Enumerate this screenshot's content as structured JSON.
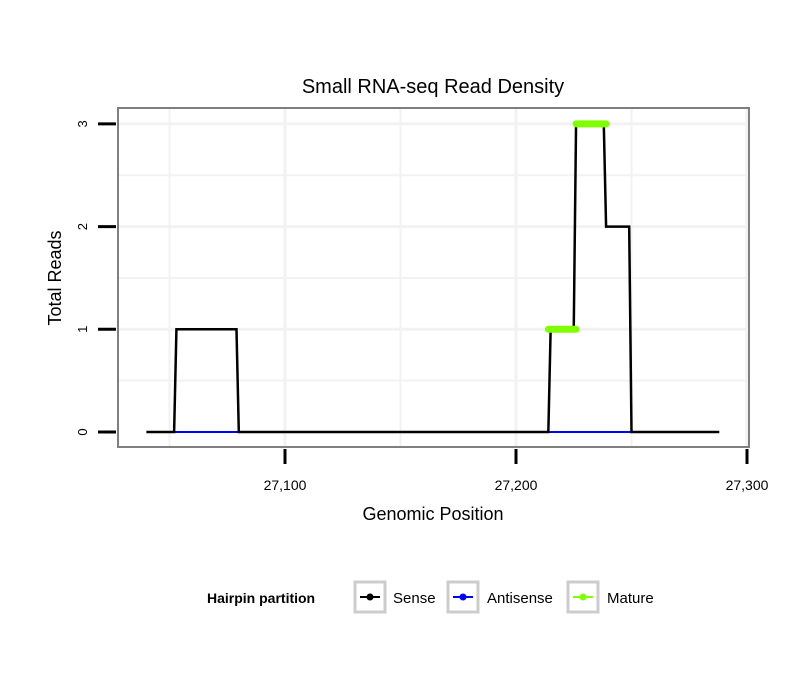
{
  "chart_data": {
    "type": "line",
    "title": "Small RNA-seq Read Density",
    "xlabel": "Genomic Position",
    "ylabel": "Total Reads",
    "xlim": [
      27030,
      27302
    ],
    "ylim": [
      -0.15,
      3.15
    ],
    "x_ticks": [
      27100,
      27200,
      27300
    ],
    "x_tick_labels": [
      "27,100",
      "27,200",
      "27,300"
    ],
    "y_ticks": [
      0,
      1,
      2,
      3
    ],
    "y_tick_labels": [
      "0",
      "1",
      "2",
      "3"
    ],
    "grid": true,
    "legend": {
      "title": "Hairpin partition",
      "placement": "bottom"
    },
    "series": [
      {
        "name": "Sense",
        "color": "#000000",
        "segments": [
          [
            [
              27040,
              0
            ],
            [
              27052,
              0
            ],
            [
              27053,
              1
            ],
            [
              27079,
              1
            ],
            [
              27080,
              0
            ],
            [
              27214,
              0
            ],
            [
              27215,
              1
            ],
            [
              27225,
              1
            ],
            [
              27226,
              3
            ],
            [
              27238,
              3
            ],
            [
              27239,
              2
            ],
            [
              27249,
              2
            ],
            [
              27250,
              0
            ],
            [
              27288,
              0
            ]
          ]
        ]
      },
      {
        "name": "Antisense",
        "color": "#0000ff",
        "segments": [
          [
            [
              27052,
              0
            ],
            [
              27080,
              0
            ]
          ],
          [
            [
              27214,
              0
            ],
            [
              27250,
              0
            ]
          ]
        ]
      },
      {
        "name": "Mature",
        "color": "#7fff00",
        "segments": [
          [
            [
              27214,
              1
            ],
            [
              27226,
              1
            ]
          ],
          [
            [
              27226,
              3
            ],
            [
              27239,
              3
            ]
          ]
        ]
      }
    ]
  }
}
